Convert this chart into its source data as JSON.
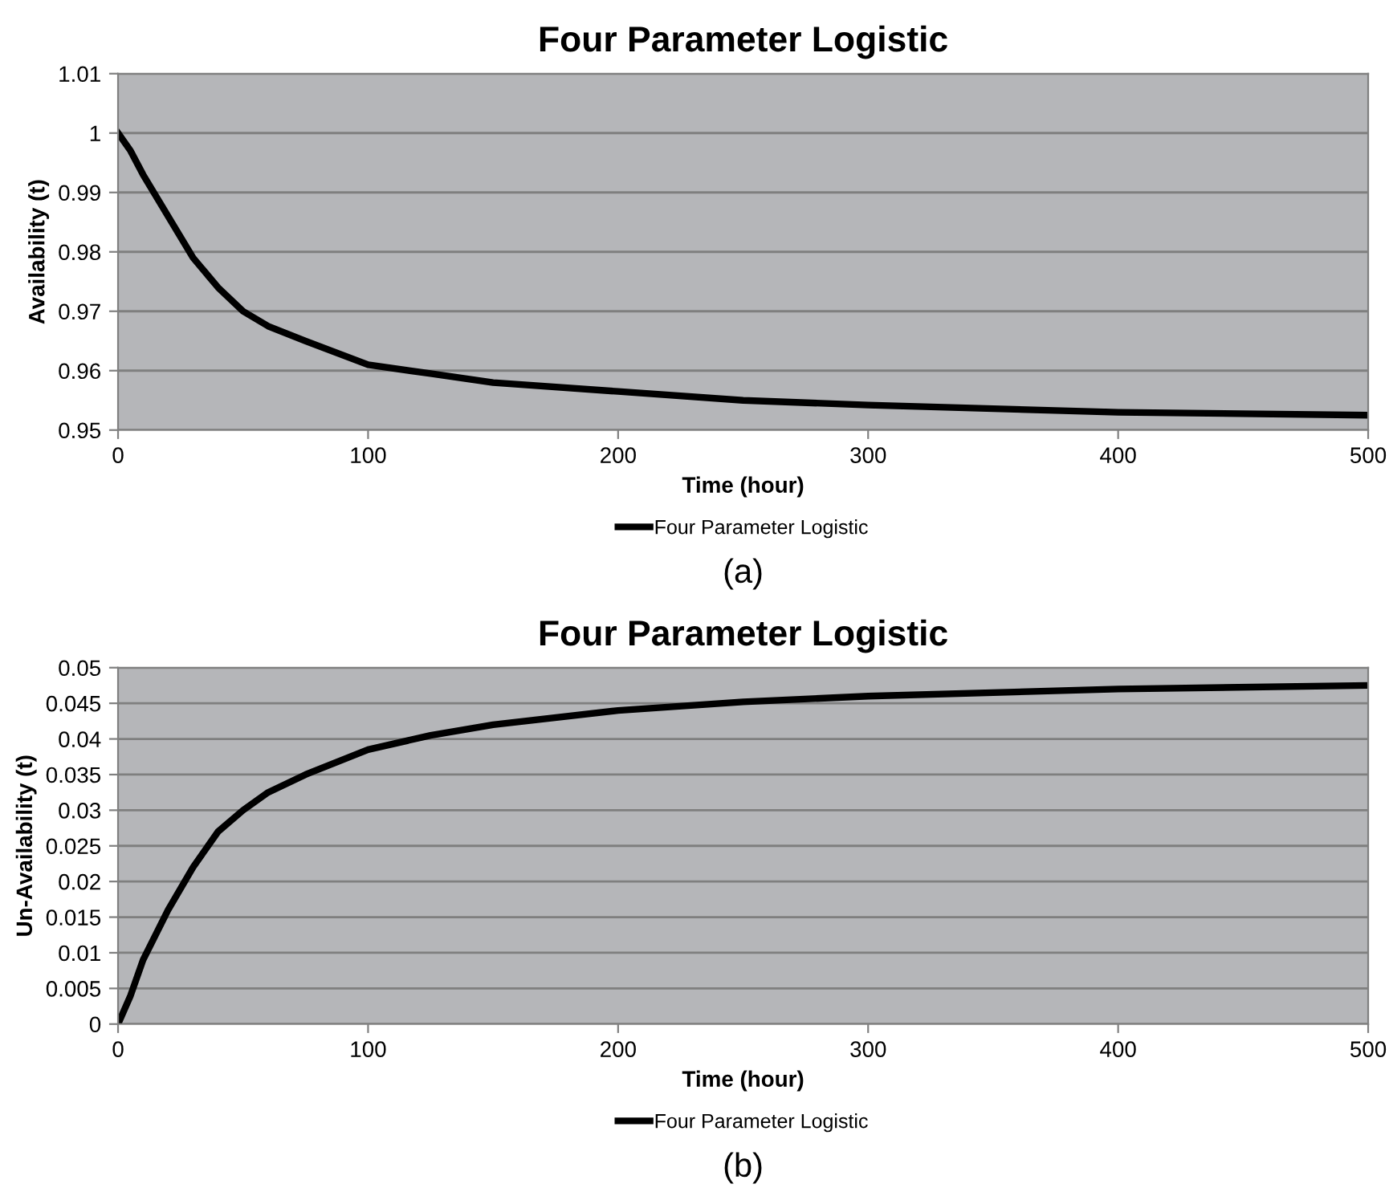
{
  "chart_data": [
    {
      "type": "line",
      "title": "Four Parameter Logistic",
      "xlabel": "Time (hour)",
      "ylabel": "Availability (t)",
      "annotations": [
        "(a)"
      ],
      "x": [
        0,
        5,
        10,
        20,
        30,
        40,
        50,
        60,
        75,
        100,
        125,
        150,
        200,
        250,
        300,
        400,
        500
      ],
      "series": [
        {
          "name": "Four Parameter Logistic",
          "color": "#000000",
          "values": [
            1.0,
            0.997,
            0.993,
            0.986,
            0.979,
            0.974,
            0.97,
            0.9675,
            0.965,
            0.961,
            0.9595,
            0.958,
            0.9565,
            0.955,
            0.9542,
            0.953,
            0.9525
          ]
        }
      ],
      "xlim": [
        0,
        500
      ],
      "xticks": [
        0,
        100,
        200,
        300,
        400,
        500
      ],
      "ylim": [
        0.95,
        1.01
      ],
      "yticks": [
        0.95,
        0.96,
        0.97,
        0.98,
        0.99,
        {
          "value": 1,
          "label": "1"
        },
        1.01
      ],
      "grid": "y",
      "legend": "bottom",
      "marker": "none",
      "line_style": "solid"
    },
    {
      "type": "line",
      "title": "Four Parameter Logistic",
      "xlabel": "Time (hour)",
      "ylabel": "Un-Availability (t)",
      "annotations": [
        "(b)"
      ],
      "x": [
        0,
        5,
        10,
        20,
        30,
        40,
        50,
        60,
        75,
        100,
        125,
        150,
        200,
        250,
        300,
        400,
        500
      ],
      "series": [
        {
          "name": "Four Parameter Logistic",
          "color": "#000000",
          "values": [
            0,
            0.004,
            0.009,
            0.016,
            0.022,
            0.027,
            0.03,
            0.0325,
            0.035,
            0.0385,
            0.0405,
            0.042,
            0.044,
            0.0452,
            0.046,
            0.047,
            0.0475
          ]
        }
      ],
      "xlim": [
        0,
        500
      ],
      "xticks": [
        0,
        100,
        200,
        300,
        400,
        500
      ],
      "ylim": [
        0,
        0.05
      ],
      "yticks": [
        0,
        0.005,
        0.01,
        0.015,
        0.02,
        0.025,
        0.03,
        0.035,
        0.04,
        0.045,
        0.05
      ],
      "grid": "y",
      "legend": "bottom",
      "marker": "none",
      "line_style": "solid"
    }
  ]
}
